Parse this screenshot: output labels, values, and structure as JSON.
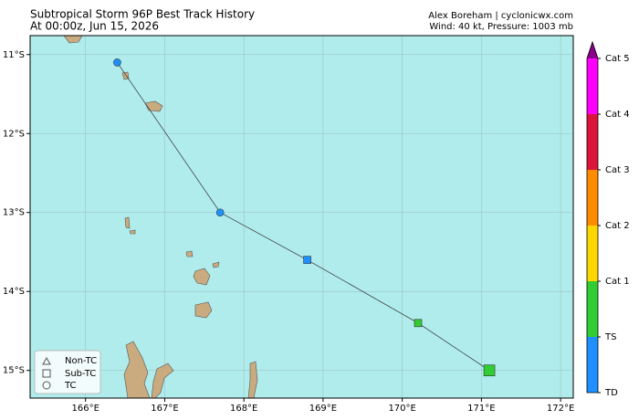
{
  "chart_data": {
    "type": "track",
    "title": "Subtropical Storm 96P Best Track History",
    "subtitle": "At 00:00z, Jun 15, 2026",
    "credit": "Alex Boreham | cyclonicwx.com",
    "status": "Wind: 40 kt, Pressure: 1003 mb",
    "x": [
      166.4,
      167.7,
      168.8,
      170.2,
      171.1
    ],
    "values": [
      -11.1,
      -13.0,
      -13.6,
      -14.4,
      -15.0
    ],
    "symbols": [
      "circle",
      "circle",
      "square",
      "square",
      "square"
    ],
    "colors": [
      "#1e90ff",
      "#1e90ff",
      "#1e90ff",
      "#32cd32",
      "#32cd32"
    ],
    "xlim": [
      165.3,
      172.16
    ],
    "ylim": [
      -15.35,
      -10.76
    ],
    "xticks": [
      {
        "value": 166,
        "label": "166°E"
      },
      {
        "value": 167,
        "label": "167°E"
      },
      {
        "value": 168,
        "label": "168°E"
      },
      {
        "value": 169,
        "label": "169°E"
      },
      {
        "value": 170,
        "label": "170°E"
      },
      {
        "value": 171,
        "label": "171°E"
      },
      {
        "value": 172,
        "label": "172°E"
      }
    ],
    "yticks": [
      {
        "value": -11,
        "label": "11°S"
      },
      {
        "value": -12,
        "label": "12°S"
      },
      {
        "value": -13,
        "label": "13°S"
      },
      {
        "value": -14,
        "label": "14°S"
      },
      {
        "value": -15,
        "label": "15°S"
      }
    ],
    "grid": true,
    "legend": [
      "Non-TC",
      "Sub-TC",
      "TC"
    ],
    "colorbar": {
      "labels": [
        "TD",
        "TS",
        "Cat 1",
        "Cat 2",
        "Cat 3",
        "Cat 4",
        "Cat 5"
      ],
      "colors": [
        "#1e90ff",
        "#32cd32",
        "#ffd700",
        "#ff8c00",
        "#dc143c",
        "#ff00ff",
        "#8b008b"
      ]
    }
  }
}
